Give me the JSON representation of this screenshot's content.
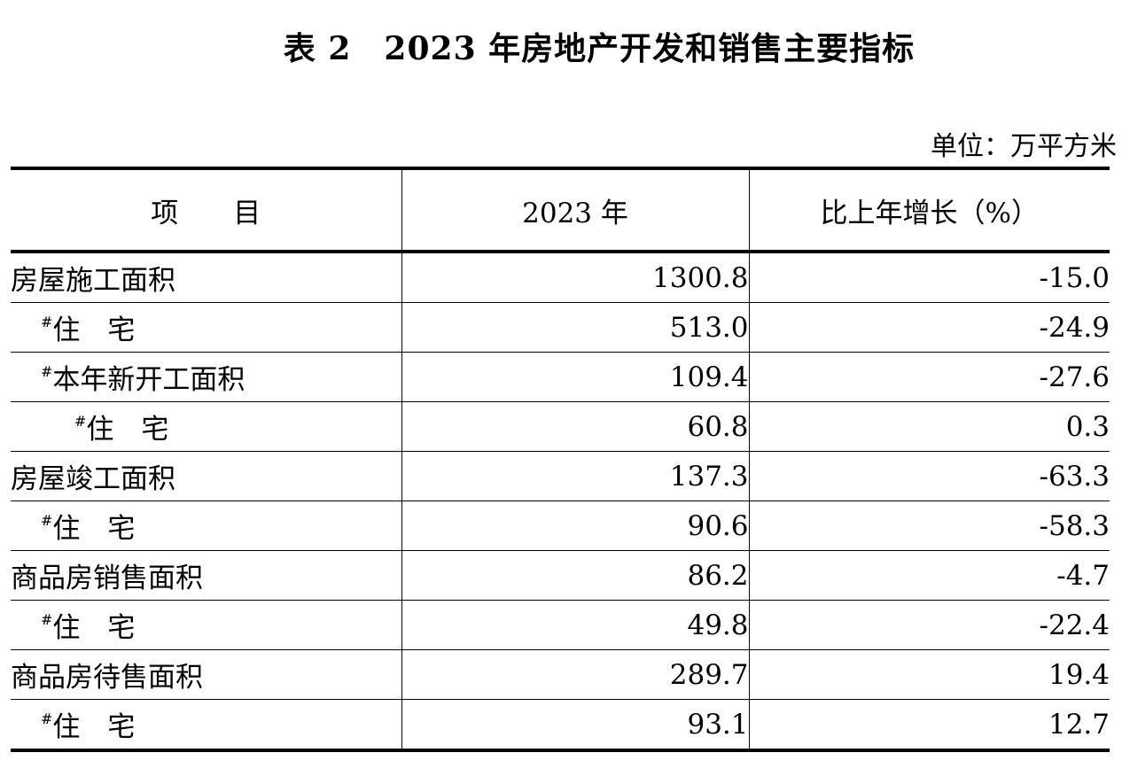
{
  "header": {
    "title": "表 2　2023 年房地产开发和销售主要指标",
    "unit": "单位：万平方米"
  },
  "table": {
    "columns": [
      "项　　目",
      "2023 年",
      "比上年增长（%）"
    ],
    "rows": [
      {
        "mark": null,
        "label": "房屋施工面积",
        "cells": [
          "1300.8",
          "-15.0"
        ]
      },
      {
        "mark": "#",
        "label": "住　宅",
        "cells": [
          "513.0",
          "-24.9"
        ]
      },
      {
        "mark": "#",
        "label": "本年新开工面积",
        "cells": [
          "109.4",
          "-27.6"
        ]
      },
      {
        "mark": "#",
        "label": "住　宅",
        "cells": [
          "60.8",
          "0.3"
        ]
      },
      {
        "mark": null,
        "label": "房屋竣工面积",
        "cells": [
          "137.3",
          "-63.3"
        ]
      },
      {
        "mark": "#",
        "label": "住　宅",
        "cells": [
          "90.6",
          "-58.3"
        ]
      },
      {
        "mark": null,
        "label": "商品房销售面积",
        "cells": [
          "86.2",
          "-4.7"
        ]
      },
      {
        "mark": "#",
        "label": "住　宅",
        "cells": [
          "49.8",
          "-22.4"
        ]
      },
      {
        "mark": null,
        "label": "商品房待售面积",
        "cells": [
          "289.7",
          "19.4"
        ]
      },
      {
        "mark": "#",
        "label": "住　宅",
        "cells": [
          "93.1",
          "12.7"
        ]
      }
    ]
  }
}
